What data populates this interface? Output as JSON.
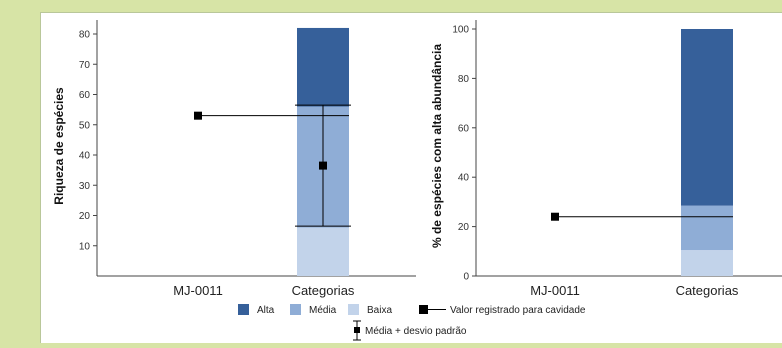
{
  "colors": {
    "alta": "#36609a",
    "media": "#8fadd6",
    "baixa": "#c2d3ea",
    "marker": "#000000",
    "background": "#d7e4a6"
  },
  "legend": {
    "items": [
      {
        "key": "alta",
        "label": "Alta"
      },
      {
        "key": "media",
        "label": "Média"
      },
      {
        "key": "baixa",
        "label": "Baixa"
      }
    ],
    "observed_label": "Valor registrado para cavidade",
    "errorbar_label": "Média + desvio padrão"
  },
  "chart_data": [
    {
      "type": "bar",
      "ylabel": "Riqueza de espécies",
      "categories": [
        "MJ-0011",
        "Categorias"
      ],
      "ylim": [
        0,
        80
      ],
      "yticks": [
        10,
        20,
        30,
        40,
        50,
        60,
        70,
        80
      ],
      "stacked_bar": {
        "category": "Categorias",
        "segments": [
          {
            "key": "baixa",
            "from": 0,
            "to": 16
          },
          {
            "key": "media",
            "from": 16,
            "to": 56
          },
          {
            "key": "alta",
            "from": 56,
            "to": 82
          }
        ]
      },
      "observed": {
        "category": "MJ-0011",
        "value": 53
      },
      "mean_sd": {
        "category": "Categorias",
        "mean": 36.5,
        "lower": 16.5,
        "upper": 56.5
      }
    },
    {
      "type": "bar",
      "ylabel": "% de espécies com alta abundância",
      "categories": [
        "MJ-0011",
        "Categorias"
      ],
      "ylim": [
        0,
        100
      ],
      "yticks": [
        0,
        20,
        40,
        60,
        80,
        100
      ],
      "stacked_bar": {
        "category": "Categorias",
        "segments": [
          {
            "key": "baixa",
            "from": 0,
            "to": 10.5
          },
          {
            "key": "media",
            "from": 10.5,
            "to": 28.5
          },
          {
            "key": "alta",
            "from": 28.5,
            "to": 100
          }
        ]
      },
      "observed": {
        "category": "MJ-0011",
        "value": 24
      }
    }
  ]
}
